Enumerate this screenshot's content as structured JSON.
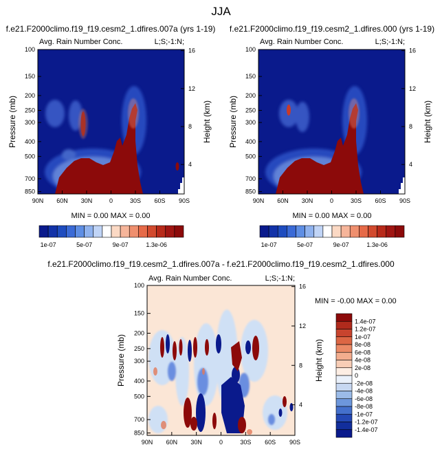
{
  "page": {
    "title": "JJA"
  },
  "colors": {
    "bg_panel": "#0a1a8c",
    "rain_core": "#8c0a0a",
    "diff_bg": "#fbe6d6",
    "diff_pos": "#8c0a0a",
    "diff_neg": "#0a1a8c"
  },
  "chart_data": [
    {
      "type": "heatmap",
      "title": "f.e21.F2000climo.f19_f19.cesm2_1.dfires.007a (yrs 1-19)",
      "subtitle_left": "Avg. Rain Number Conc.",
      "subtitle_right": "L;S;-1:N;",
      "xlabel": "",
      "ylabel": "Pressure (mb)",
      "ylabel_right": "Height (km)",
      "x_ticks": [
        "90N",
        "60N",
        "30N",
        "0",
        "30S",
        "60S",
        "90S"
      ],
      "y_ticks": [
        "100",
        "150",
        "200",
        "250",
        "300",
        "400",
        "500",
        "700",
        "850"
      ],
      "y_ticks_right": [
        "16",
        "12",
        "8",
        "4"
      ],
      "stats": "MIN =  0.00  MAX =  0.00",
      "colorbar_labels": [
        "1e-07",
        "5e-07",
        "9e-07",
        "1.3e-06"
      ]
    },
    {
      "type": "heatmap",
      "title": "f.e21.F2000climo.f19_f19.cesm2_1.dfires.000 (yrs 1-19)",
      "subtitle_left": "Avg. Rain Number Conc.",
      "subtitle_right": "L;S;-1:N;",
      "xlabel": "",
      "ylabel": "Pressure (mb)",
      "ylabel_right": "Height (km)",
      "x_ticks": [
        "90N",
        "60N",
        "30N",
        "0",
        "30S",
        "60S",
        "90S"
      ],
      "y_ticks": [
        "100",
        "150",
        "200",
        "250",
        "300",
        "400",
        "500",
        "700",
        "850"
      ],
      "y_ticks_right": [
        "16",
        "12",
        "8",
        "4"
      ],
      "stats": "MIN =  0.00  MAX =  0.00",
      "colorbar_labels": [
        "1e-07",
        "5e-07",
        "9e-07",
        "1.3e-06"
      ]
    },
    {
      "type": "heatmap",
      "title": "f.e21.F2000climo.f19_f19.cesm2_1.dfires.007a - f.e21.F2000climo.f19_f19.cesm2_1.dfires.000",
      "subtitle_left": "Avg. Rain Number Conc.",
      "subtitle_right": "L;S;-1:N;",
      "xlabel": "",
      "ylabel": "Pressure (mb)",
      "ylabel_right": "Height (km)",
      "x_ticks": [
        "90N",
        "60N",
        "30N",
        "0",
        "30S",
        "60S",
        "90S"
      ],
      "y_ticks": [
        "100",
        "150",
        "200",
        "250",
        "300",
        "400",
        "500",
        "700",
        "850"
      ],
      "y_ticks_right": [
        "16",
        "12",
        "8",
        "4"
      ],
      "stats": "MIN = -0.00  MAX =  0.00",
      "colorbar_labels": [
        "1.4e-07",
        "1.2e-07",
        "1e-07",
        "8e-08",
        "6e-08",
        "4e-08",
        "2e-08",
        "0",
        "-2e-08",
        "-4e-08",
        "-6e-08",
        "-8e-08",
        "-1e-07",
        "-1.2e-07",
        "-1.4e-07"
      ]
    }
  ]
}
